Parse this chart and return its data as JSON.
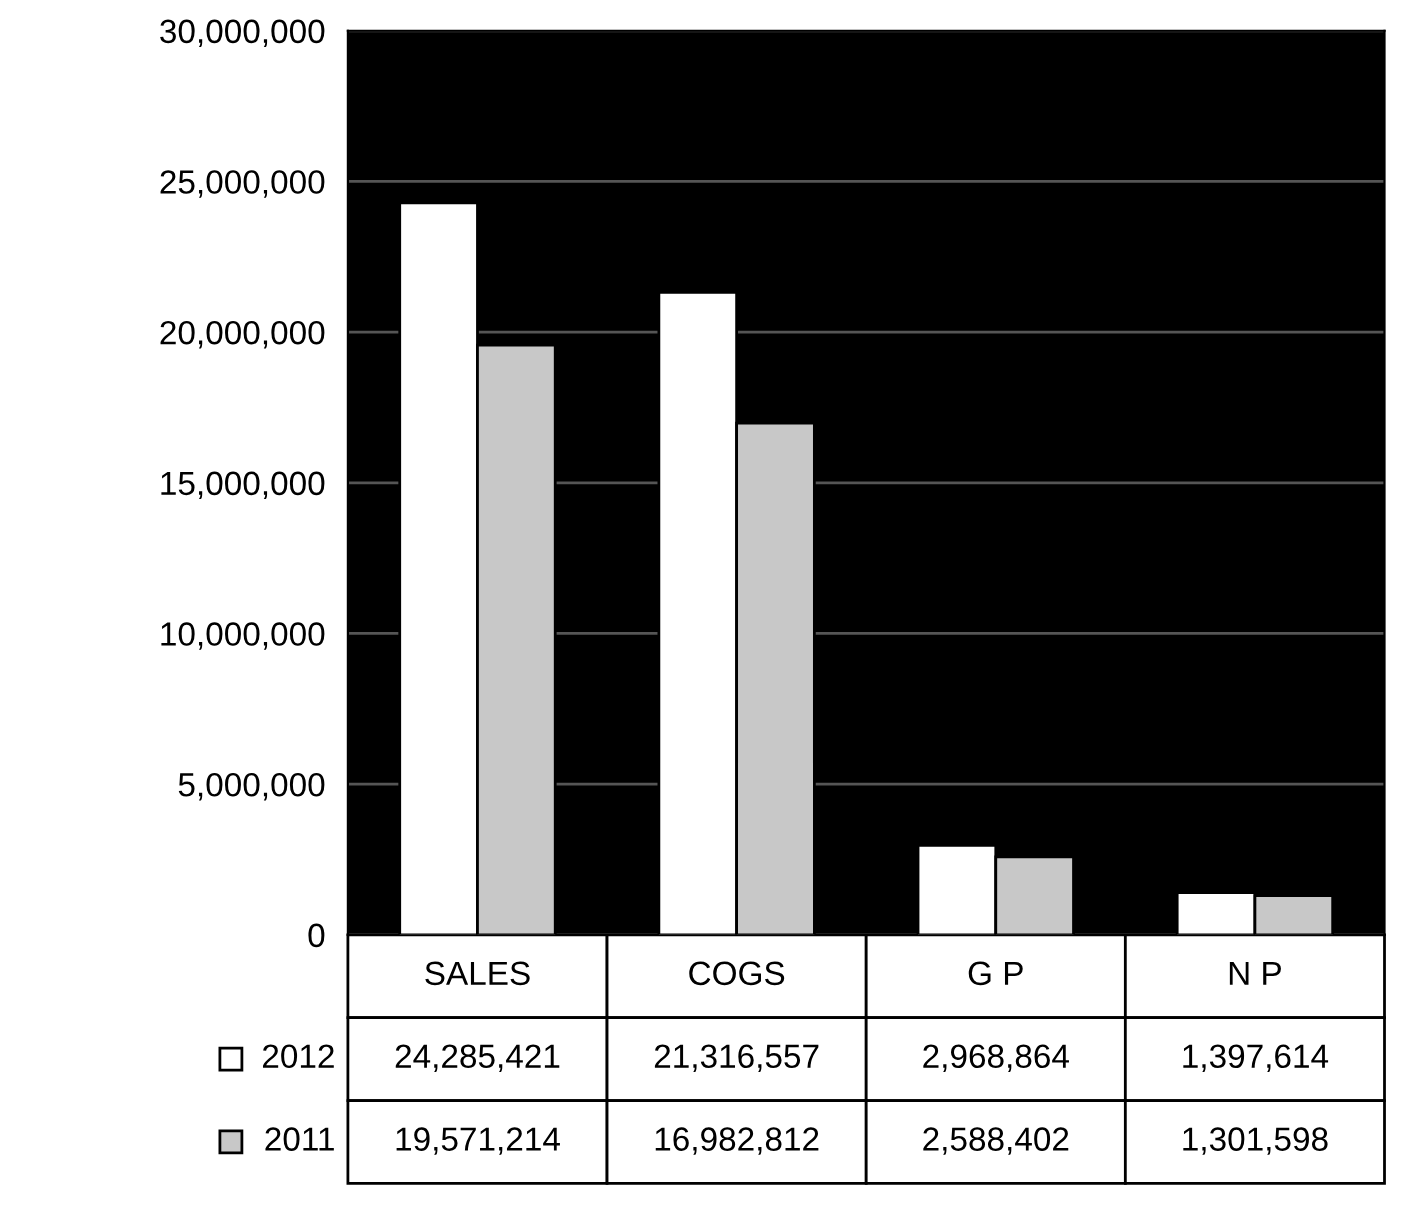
{
  "chart_data": {
    "type": "bar",
    "categories": [
      "SALES",
      "COGS",
      "G P",
      "N P"
    ],
    "series": [
      {
        "name": "2012",
        "color": "#ffffff",
        "values": [
          24285421,
          21316557,
          2968864,
          1397614
        ],
        "value_labels": [
          "24,285,421",
          "21,316,557",
          "2,968,864",
          "1,397,614"
        ]
      },
      {
        "name": "2011",
        "color": "#c8c8c8",
        "values": [
          19571214,
          16982812,
          2588402,
          1301598
        ],
        "value_labels": [
          "19,571,214",
          "16,982,812",
          "2,588,402",
          "1,301,598"
        ]
      }
    ],
    "ylim": [
      0,
      30000000
    ],
    "yticks": [
      0,
      {
        "value": 5000000,
        "label": "5,000,000"
      },
      {
        "value": 10000000,
        "label": "10,000,000"
      },
      {
        "value": 15000000,
        "label": "15,000,000"
      },
      {
        "value": 20000000,
        "label": "20,000,000"
      },
      {
        "value": 25000000,
        "label": "25,000,000"
      },
      {
        "value": 30000000,
        "label": "30,000,000"
      }
    ],
    "grid": "y",
    "legend": "bottom left"
  }
}
